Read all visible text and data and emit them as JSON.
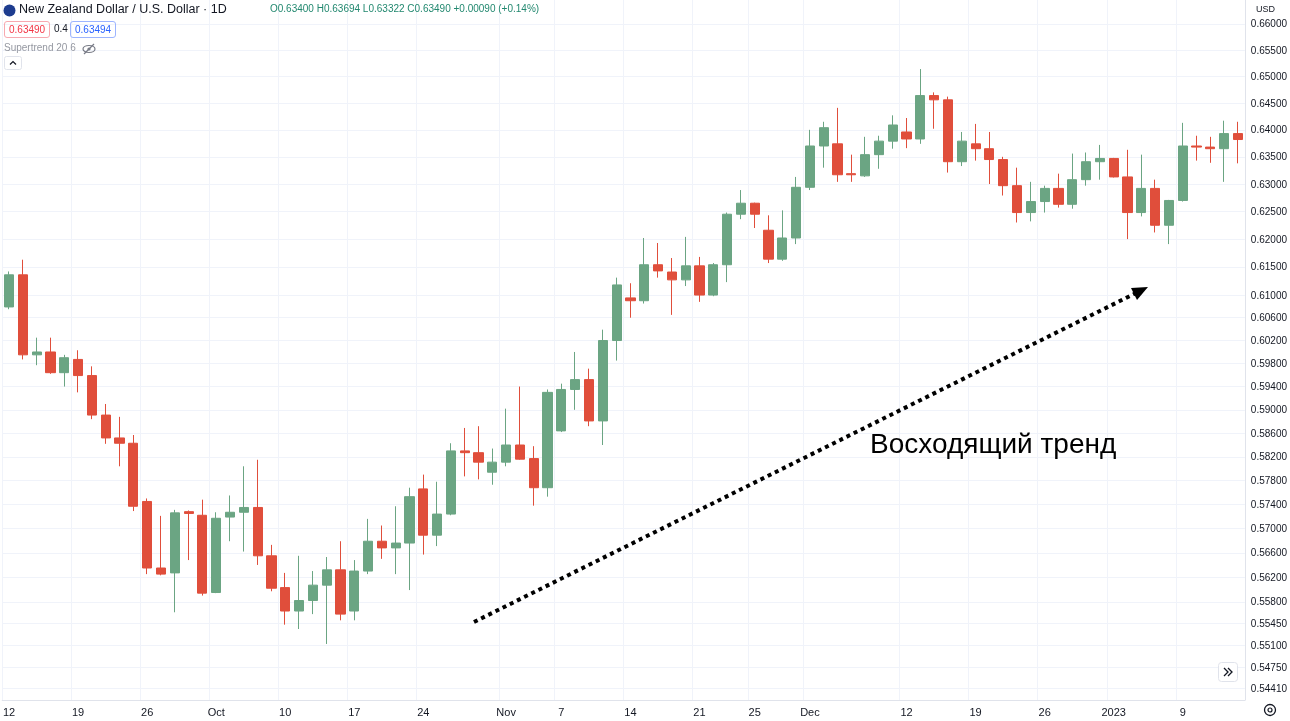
{
  "chart_data": {
    "type": "candlestick",
    "title": "New Zealand Dollar / U.S. Dollar · 1D",
    "ylabel": "USD",
    "annotations": [
      "O0.63400 H0.63694 L0.63322 C0.63490 +0.00090 (+0.14%)",
      "0.63490",
      "0.4",
      "0.63494",
      "Supertrend 20 6",
      "Восходящий тренд"
    ],
    "categories": [
      "12",
      null,
      null,
      null,
      null,
      "19",
      null,
      null,
      null,
      null,
      "26",
      null,
      null,
      null,
      null,
      "Oct",
      null,
      null,
      null,
      null,
      "10",
      null,
      null,
      null,
      null,
      "17",
      null,
      null,
      null,
      null,
      "24",
      null,
      null,
      null,
      null,
      null,
      "Nov",
      null,
      null,
      null,
      "7",
      null,
      null,
      null,
      null,
      "14",
      null,
      null,
      null,
      null,
      "21",
      null,
      null,
      null,
      "25",
      null,
      null,
      null,
      "Dec",
      null,
      null,
      null,
      null,
      null,
      null,
      "12",
      null,
      null,
      null,
      null,
      "19",
      null,
      null,
      null,
      null,
      "26",
      null,
      null,
      null,
      null,
      "2023",
      null,
      null,
      null,
      null,
      "9",
      null,
      null,
      null,
      null
    ],
    "ohlc": [
      [
        0.6079,
        0.6142,
        0.6075,
        0.6136
      ],
      [
        0.6136,
        0.6163,
        0.5987,
        0.5995
      ],
      [
        0.5995,
        0.6025,
        0.5977,
        0.6
      ],
      [
        0.6,
        0.6025,
        0.5962,
        0.5964
      ],
      [
        0.5964,
        0.5995,
        0.594,
        0.599
      ],
      [
        0.5987,
        0.6003,
        0.593,
        0.5959
      ],
      [
        0.5959,
        0.5975,
        0.5884,
        0.5891
      ],
      [
        0.5891,
        0.591,
        0.5842,
        0.5852
      ],
      [
        0.5852,
        0.5888,
        0.5804,
        0.5843
      ],
      [
        0.5843,
        0.5857,
        0.5729,
        0.5737
      ],
      [
        0.5745,
        0.575,
        0.5625,
        0.5635
      ],
      [
        0.5635,
        0.5721,
        0.5623,
        0.5625
      ],
      [
        0.5627,
        0.5731,
        0.5563,
        0.5726
      ],
      [
        0.5728,
        0.573,
        0.5648,
        0.5725
      ],
      [
        0.5722,
        0.5748,
        0.559,
        0.5594
      ],
      [
        0.5595,
        0.5727,
        0.5594,
        0.5717
      ],
      [
        0.5719,
        0.5755,
        0.5679,
        0.5727
      ],
      [
        0.5727,
        0.5804,
        0.5662,
        0.5735
      ],
      [
        0.5735,
        0.5815,
        0.564,
        0.5655
      ],
      [
        0.5655,
        0.5673,
        0.5597,
        0.5602
      ],
      [
        0.5603,
        0.5627,
        0.5543,
        0.5565
      ],
      [
        0.5565,
        0.5655,
        0.5536,
        0.5582
      ],
      [
        0.5582,
        0.563,
        0.556,
        0.5607
      ],
      [
        0.5607,
        0.5653,
        0.5512,
        0.5632
      ],
      [
        0.5632,
        0.5679,
        0.555,
        0.556
      ],
      [
        0.5565,
        0.5648,
        0.555,
        0.563
      ],
      [
        0.563,
        0.5716,
        0.5625,
        0.5679
      ],
      [
        0.5679,
        0.5705,
        0.565,
        0.5668
      ],
      [
        0.5668,
        0.5737,
        0.5625,
        0.5676
      ],
      [
        0.5676,
        0.5768,
        0.5599,
        0.5753
      ],
      [
        0.5766,
        0.579,
        0.5657,
        0.5689
      ],
      [
        0.5689,
        0.5778,
        0.5671,
        0.5724
      ],
      [
        0.5724,
        0.5843,
        0.5722,
        0.583
      ],
      [
        0.583,
        0.5869,
        0.5787,
        0.5827
      ],
      [
        0.5827,
        0.5872,
        0.5782,
        0.5811
      ],
      [
        0.5794,
        0.5834,
        0.5773,
        0.5811
      ],
      [
        0.5811,
        0.5902,
        0.5804,
        0.584
      ],
      [
        0.584,
        0.594,
        0.5815,
        0.5816
      ],
      [
        0.5817,
        0.5838,
        0.5738,
        0.5768
      ],
      [
        0.5768,
        0.5935,
        0.5753,
        0.593
      ],
      [
        0.5864,
        0.5945,
        0.5862,
        0.5935
      ],
      [
        0.5935,
        0.6,
        0.59,
        0.5952
      ],
      [
        0.5952,
        0.5971,
        0.5872,
        0.5881
      ],
      [
        0.5881,
        0.6039,
        0.584,
        0.602
      ],
      [
        0.602,
        0.6131,
        0.5985,
        0.6118
      ],
      [
        0.6095,
        0.6121,
        0.606,
        0.609
      ],
      [
        0.609,
        0.6202,
        0.6085,
        0.6154
      ],
      [
        0.6154,
        0.6193,
        0.6131,
        0.6143
      ],
      [
        0.6141,
        0.6166,
        0.6065,
        0.6127
      ],
      [
        0.6127,
        0.6204,
        0.6116,
        0.6152
      ],
      [
        0.6152,
        0.6168,
        0.6088,
        0.61
      ],
      [
        0.61,
        0.6157,
        0.6098,
        0.6154
      ],
      [
        0.6154,
        0.6248,
        0.6123,
        0.6245
      ],
      [
        0.6245,
        0.6289,
        0.6236,
        0.6265
      ],
      [
        0.6265,
        0.6266,
        0.622,
        0.6245
      ],
      [
        0.6216,
        0.6243,
        0.6157,
        0.6164
      ],
      [
        0.6164,
        0.6252,
        0.6161,
        0.6202
      ],
      [
        0.6202,
        0.6313,
        0.6191,
        0.6294
      ],
      [
        0.6294,
        0.64,
        0.6289,
        0.637
      ],
      [
        0.637,
        0.6415,
        0.633,
        0.6404
      ],
      [
        0.6374,
        0.6441,
        0.6304,
        0.6317
      ],
      [
        0.6319,
        0.6354,
        0.6304,
        0.6317
      ],
      [
        0.6315,
        0.6387,
        0.6313,
        0.6354
      ],
      [
        0.6354,
        0.6389,
        0.6328,
        0.6379
      ],
      [
        0.6379,
        0.6427,
        0.6365,
        0.6409
      ],
      [
        0.6396,
        0.6422,
        0.6366,
        0.6383
      ],
      [
        0.6383,
        0.6514,
        0.6374,
        0.6464
      ],
      [
        0.6464,
        0.647,
        0.6402,
        0.6456
      ],
      [
        0.6456,
        0.6462,
        0.6321,
        0.6341
      ],
      [
        0.6341,
        0.6396,
        0.6333,
        0.6379
      ],
      [
        0.6374,
        0.6411,
        0.6343,
        0.6365
      ],
      [
        0.6365,
        0.6396,
        0.63,
        0.6345
      ],
      [
        0.6345,
        0.635,
        0.6279,
        0.6297
      ],
      [
        0.6297,
        0.633,
        0.623,
        0.6248
      ],
      [
        0.6248,
        0.6304,
        0.6232,
        0.6268
      ],
      [
        0.6268,
        0.6297,
        0.6248,
        0.6292
      ],
      [
        0.6292,
        0.6319,
        0.6257,
        0.6263
      ],
      [
        0.6263,
        0.6356,
        0.6255,
        0.6308
      ],
      [
        0.6308,
        0.6358,
        0.6297,
        0.6341
      ],
      [
        0.6341,
        0.6372,
        0.6308,
        0.6347
      ],
      [
        0.6347,
        0.6348,
        0.6312,
        0.6313
      ],
      [
        0.6313,
        0.6363,
        0.62,
        0.6248
      ],
      [
        0.6248,
        0.6354,
        0.6241,
        0.6292
      ],
      [
        0.6292,
        0.6308,
        0.6212,
        0.6225
      ],
      [
        0.6225,
        0.6271,
        0.6191,
        0.627
      ],
      [
        0.627,
        0.6413,
        0.6268,
        0.637
      ],
      [
        0.637,
        0.6389,
        0.6343,
        0.6368
      ],
      [
        0.6368,
        0.6387,
        0.6339,
        0.6365
      ],
      [
        0.6365,
        0.6417,
        0.6304,
        0.6393
      ],
      [
        0.6393,
        0.6415,
        0.6338,
        0.6382
      ]
    ],
    "colors": [
      "#6ba583",
      "#e04e3b",
      "#6ba583",
      "#e04e3b",
      "#6ba583",
      "#e04e3b",
      "#e04e3b",
      "#e04e3b",
      "#e04e3b",
      "#e04e3b",
      "#e04e3b",
      "#e04e3b",
      "#6ba583",
      "#e04e3b",
      "#e04e3b",
      "#6ba583",
      "#6ba583",
      "#6ba583",
      "#e04e3b",
      "#e04e3b",
      "#e04e3b",
      "#6ba583",
      "#6ba583",
      "#6ba583",
      "#e04e3b",
      "#6ba583",
      "#6ba583",
      "#e04e3b",
      "#6ba583",
      "#6ba583",
      "#e04e3b",
      "#6ba583",
      "#6ba583",
      "#e04e3b",
      "#e04e3b",
      "#6ba583",
      "#6ba583",
      "#e04e3b",
      "#e04e3b",
      "#6ba583",
      "#6ba583",
      "#6ba583",
      "#e04e3b",
      "#6ba583",
      "#6ba583",
      "#e04e3b",
      "#6ba583",
      "#e04e3b",
      "#e04e3b",
      "#6ba583",
      "#e04e3b",
      "#6ba583",
      "#6ba583",
      "#6ba583",
      "#e04e3b",
      "#e04e3b",
      "#6ba583",
      "#6ba583",
      "#6ba583",
      "#6ba583",
      "#e04e3b",
      "#e04e3b",
      "#6ba583",
      "#6ba583",
      "#6ba583",
      "#e04e3b",
      "#6ba583",
      "#e04e3b",
      "#e04e3b",
      "#6ba583",
      "#e04e3b",
      "#e04e3b",
      "#e04e3b",
      "#e04e3b",
      "#6ba583",
      "#6ba583",
      "#e04e3b",
      "#6ba583",
      "#6ba583",
      "#6ba583",
      "#e04e3b",
      "#e04e3b",
      "#6ba583",
      "#e04e3b",
      "#6ba583",
      "#6ba583",
      "#e04e3b",
      "#e04e3b",
      "#6ba583",
      "#e04e3b"
    ],
    "log": "y",
    "ylim": [
      0.5423,
      0.6646
    ],
    "yticks": [
      {
        "value": 0.5441,
        "label": "0.54410"
      },
      {
        "value": 0.5475,
        "label": "0.54750"
      },
      {
        "value": 0.551,
        "label": "0.55100"
      },
      {
        "value": 0.5545,
        "label": "0.55450"
      },
      {
        "value": 0.558,
        "label": "0.55800"
      },
      {
        "value": 0.562,
        "label": "0.56200"
      },
      {
        "value": 0.566,
        "label": "0.56600"
      },
      {
        "value": 0.57,
        "label": "0.57000"
      },
      {
        "value": 0.574,
        "label": "0.57400"
      },
      {
        "value": 0.578,
        "label": "0.57800"
      },
      {
        "value": 0.582,
        "label": "0.58200"
      },
      {
        "value": 0.586,
        "label": "0.58600"
      },
      {
        "value": 0.59,
        "label": "0.59000"
      },
      {
        "value": 0.594,
        "label": "0.59400"
      },
      {
        "value": 0.598,
        "label": "0.59800"
      },
      {
        "value": 0.602,
        "label": "0.60200"
      },
      {
        "value": 0.606,
        "label": "0.60600"
      },
      {
        "value": 0.61,
        "label": "0.61000"
      },
      {
        "value": 0.615,
        "label": "0.61500"
      },
      {
        "value": 0.62,
        "label": "0.62000"
      },
      {
        "value": 0.625,
        "label": "0.62500"
      },
      {
        "value": 0.63,
        "label": "0.63000"
      },
      {
        "value": 0.635,
        "label": "0.63500"
      },
      {
        "value": 0.64,
        "label": "0.64000"
      },
      {
        "value": 0.645,
        "label": "0.64500"
      },
      {
        "value": 0.65,
        "label": "0.65000"
      },
      {
        "value": 0.655,
        "label": "0.65500"
      },
      {
        "value": 0.66,
        "label": "0.66000"
      }
    ],
    "grid": true
  }
}
